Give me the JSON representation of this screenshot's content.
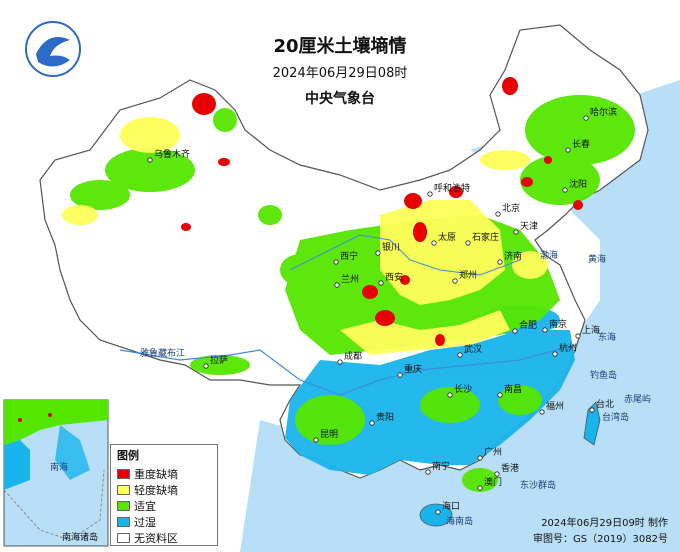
{
  "title": "20厘米土壤墒情",
  "datetime": "2024年06月29日08时",
  "organization": "中央气象台",
  "legend": {
    "title": "图例",
    "items": [
      {
        "label": "重度缺墒",
        "color": "#e60000"
      },
      {
        "label": "轻度缺墒",
        "color": "#ffff5a"
      },
      {
        "label": "适宜",
        "color": "#55e600"
      },
      {
        "label": "过湿",
        "color": "#19b4eb"
      },
      {
        "label": "无资料区",
        "color": "#ffffff"
      }
    ]
  },
  "footer": {
    "made": "2024年06月29日09时 制作",
    "approval": "审图号：GS（2019）3082号"
  },
  "inset_label": "南海诸岛",
  "colors": {
    "sea": "#b9def7",
    "land_nodata": "#ffffff",
    "border": "#555555"
  },
  "cities": [
    {
      "name": "哈尔滨"
    },
    {
      "name": "长春"
    },
    {
      "name": "沈阳"
    },
    {
      "name": "北京"
    },
    {
      "name": "天津"
    },
    {
      "name": "石家庄"
    },
    {
      "name": "太原"
    },
    {
      "name": "呼和浩特"
    },
    {
      "name": "济南"
    },
    {
      "name": "郑州"
    },
    {
      "name": "西安"
    },
    {
      "name": "兰州"
    },
    {
      "name": "银川"
    },
    {
      "name": "西宁"
    },
    {
      "name": "乌鲁木齐"
    },
    {
      "name": "拉萨"
    },
    {
      "name": "成都"
    },
    {
      "name": "重庆"
    },
    {
      "name": "武汉"
    },
    {
      "name": "合肥"
    },
    {
      "name": "南京"
    },
    {
      "name": "上海"
    },
    {
      "name": "杭州"
    },
    {
      "name": "南昌"
    },
    {
      "name": "长沙"
    },
    {
      "name": "贵阳"
    },
    {
      "name": "昆明"
    },
    {
      "name": "南宁"
    },
    {
      "name": "广州"
    },
    {
      "name": "福州"
    },
    {
      "name": "台北"
    },
    {
      "name": "香港"
    },
    {
      "name": "澳门"
    },
    {
      "name": "海口"
    }
  ],
  "geo_labels": [
    {
      "name": "黄海"
    },
    {
      "name": "东海"
    },
    {
      "name": "渤海"
    },
    {
      "name": "台湾岛"
    },
    {
      "name": "钓鱼岛"
    },
    {
      "name": "赤尾屿"
    },
    {
      "name": "东沙群岛"
    },
    {
      "name": "海南岛"
    },
    {
      "name": "南海"
    },
    {
      "name": "雅鲁藏布江"
    }
  ]
}
